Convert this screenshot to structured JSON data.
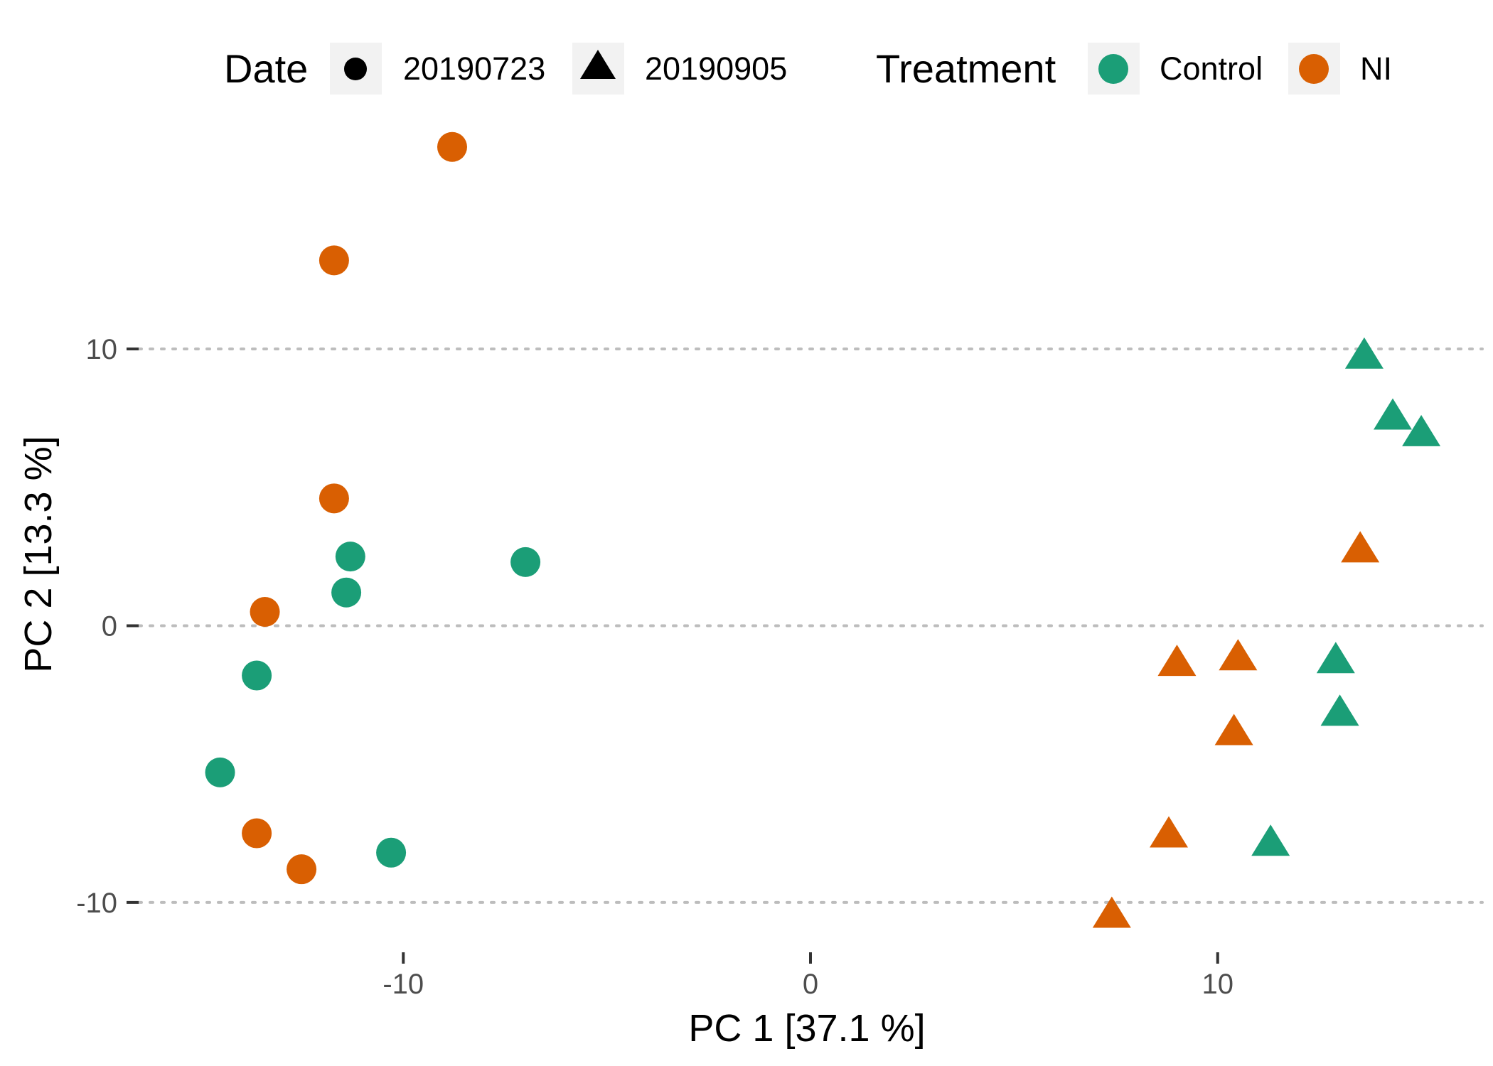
{
  "chart_data": {
    "type": "scatter",
    "title": "",
    "xlabel": "PC 1 [37.1 %]",
    "ylabel": "PC 2 [13.3 %]",
    "xlim": [
      -16.5,
      16.5
    ],
    "ylim": [
      -11.8,
      18.5
    ],
    "x_ticks": [
      {
        "value": -10,
        "label": "-10"
      },
      {
        "value": 0,
        "label": "0"
      },
      {
        "value": 10,
        "label": "10"
      }
    ],
    "y_ticks": [
      {
        "value": -10,
        "label": "-10"
      },
      {
        "value": 0,
        "label": "0"
      },
      {
        "value": 10,
        "label": "10"
      }
    ],
    "grid": "horizontal-major-dotted",
    "legend_position": "top",
    "legend": {
      "shape_title": "Date",
      "shape_items": [
        {
          "label": "20190723",
          "shape": "circle"
        },
        {
          "label": "20190905",
          "shape": "triangle"
        }
      ],
      "color_title": "Treatment",
      "color_items": [
        {
          "label": "Control",
          "color": "#1b9e77"
        },
        {
          "label": "NI",
          "color": "#d95f02"
        }
      ]
    },
    "series": [
      {
        "treatment": "NI",
        "date": "20190723",
        "color": "#d95f02",
        "shape": "circle",
        "points": [
          {
            "x": -8.8,
            "y": 17.3
          },
          {
            "x": -11.7,
            "y": 13.2
          },
          {
            "x": -11.7,
            "y": 4.6
          },
          {
            "x": -13.4,
            "y": 0.5
          },
          {
            "x": -13.6,
            "y": -7.5
          },
          {
            "x": -12.5,
            "y": -8.8
          }
        ]
      },
      {
        "treatment": "Control",
        "date": "20190723",
        "color": "#1b9e77",
        "shape": "circle",
        "points": [
          {
            "x": -11.3,
            "y": 2.5
          },
          {
            "x": -7.0,
            "y": 2.3
          },
          {
            "x": -11.4,
            "y": 1.2
          },
          {
            "x": -13.6,
            "y": -1.8
          },
          {
            "x": -14.5,
            "y": -5.3
          },
          {
            "x": -10.3,
            "y": -8.2
          }
        ]
      },
      {
        "treatment": "Control",
        "date": "20190905",
        "color": "#1b9e77",
        "shape": "triangle",
        "points": [
          {
            "x": 13.6,
            "y": 9.8
          },
          {
            "x": 14.3,
            "y": 7.6
          },
          {
            "x": 15.0,
            "y": 7.0
          },
          {
            "x": 12.9,
            "y": -1.2
          },
          {
            "x": 13.0,
            "y": -3.1
          },
          {
            "x": 11.3,
            "y": -7.8
          }
        ]
      },
      {
        "treatment": "NI",
        "date": "20190905",
        "color": "#d95f02",
        "shape": "triangle",
        "points": [
          {
            "x": 13.5,
            "y": 2.8
          },
          {
            "x": 9.0,
            "y": -1.3
          },
          {
            "x": 10.5,
            "y": -1.1
          },
          {
            "x": 10.4,
            "y": -3.8
          },
          {
            "x": 8.8,
            "y": -7.5
          },
          {
            "x": 7.4,
            "y": -10.4
          }
        ]
      }
    ]
  }
}
